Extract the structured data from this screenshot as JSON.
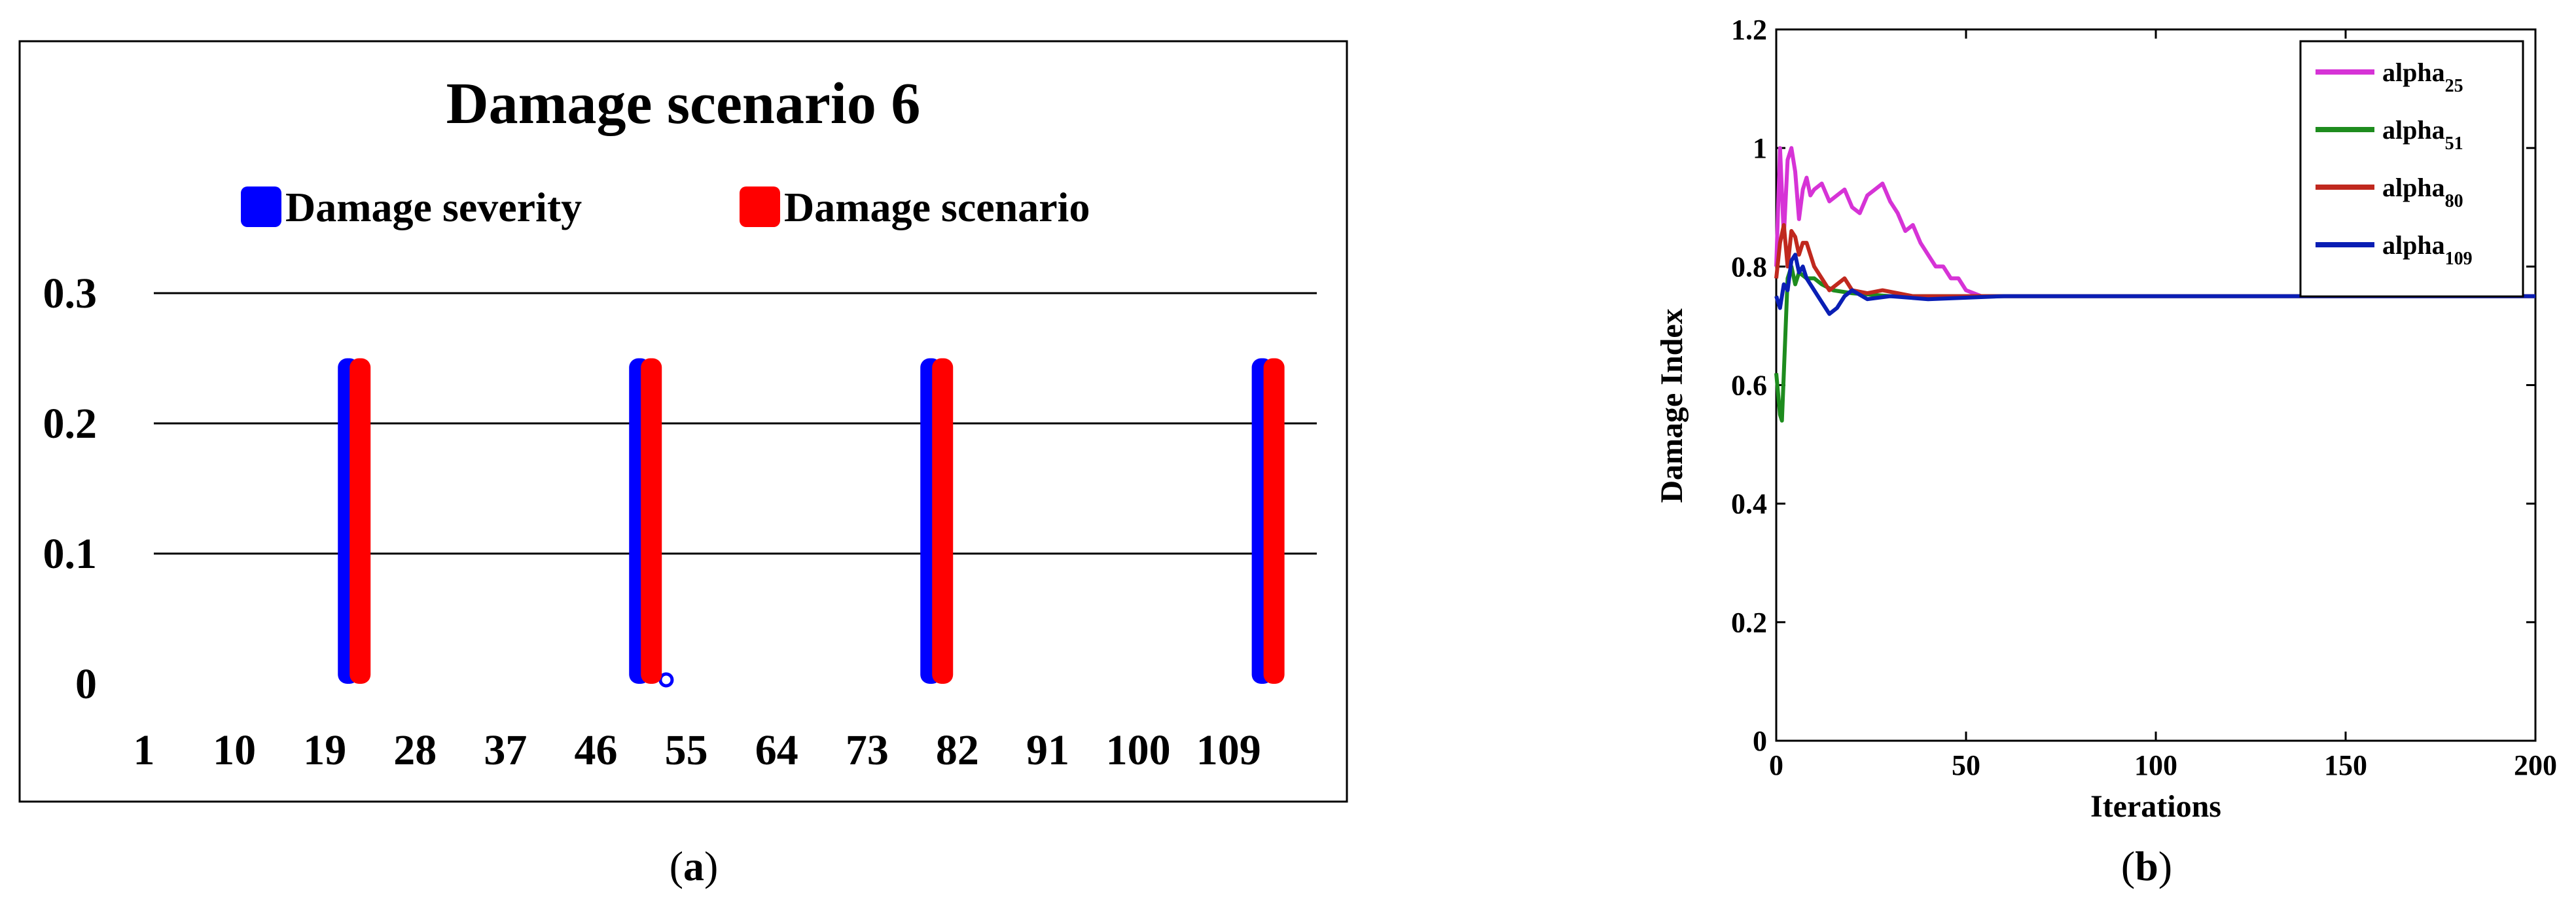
{
  "captions": {
    "a": "a",
    "b": "b"
  },
  "chart_data": [
    {
      "type": "bar",
      "title": "Damage scenario 6",
      "x_tick_labels": [
        "1",
        "10",
        "19",
        "28",
        "37",
        "46",
        "55",
        "64",
        "73",
        "82",
        "91",
        "100",
        "109"
      ],
      "y_tick_labels": [
        "0",
        "0.1",
        "0.2",
        "0.3"
      ],
      "xlim": [
        1,
        117
      ],
      "ylim": [
        0,
        0.3
      ],
      "grid": true,
      "legend_placement": "top",
      "series": [
        {
          "name": "Damage severity",
          "color": "#0000ff",
          "points": [
            {
              "x": 22,
              "y": 0.25
            },
            {
              "x": 51,
              "y": 0.25
            },
            {
              "x": 53,
              "y": 0.005
            },
            {
              "x": 80,
              "y": 0.25
            },
            {
              "x": 113,
              "y": 0.25
            }
          ]
        },
        {
          "name": "Damage scenario",
          "color": "#ff0000",
          "points": [
            {
              "x": 22,
              "y": 0.25
            },
            {
              "x": 51,
              "y": 0.25
            },
            {
              "x": 80,
              "y": 0.25
            },
            {
              "x": 113,
              "y": 0.25
            }
          ]
        }
      ]
    },
    {
      "type": "line",
      "xlabel": "Iterations",
      "ylabel": "Damage Index",
      "x_ticks": [
        0,
        50,
        100,
        150,
        200
      ],
      "y_ticks": [
        0,
        0.2,
        0.4,
        0.6,
        0.8,
        1,
        1.2
      ],
      "xlim": [
        0,
        200
      ],
      "ylim": [
        0,
        1.2
      ],
      "legend_placement": "top-right",
      "series": [
        {
          "name": "alpha",
          "subscript": "25",
          "color": "#d633d6",
          "x": [
            0,
            1,
            2,
            3,
            4,
            5,
            6,
            7,
            8,
            9,
            10,
            12,
            14,
            16,
            18,
            20,
            22,
            24,
            26,
            28,
            30,
            32,
            34,
            36,
            38,
            40,
            42,
            44,
            46,
            48,
            50,
            52,
            54,
            60,
            80,
            120,
            160,
            200
          ],
          "y": [
            0.8,
            1.0,
            0.85,
            0.98,
            1.0,
            0.96,
            0.88,
            0.93,
            0.95,
            0.92,
            0.93,
            0.94,
            0.91,
            0.92,
            0.93,
            0.9,
            0.89,
            0.92,
            0.93,
            0.94,
            0.91,
            0.89,
            0.86,
            0.87,
            0.84,
            0.82,
            0.8,
            0.8,
            0.78,
            0.78,
            0.76,
            0.755,
            0.75,
            0.75,
            0.75,
            0.75,
            0.75,
            0.75
          ]
        },
        {
          "name": "alpha",
          "subscript": "51",
          "color": "#1e8c1e",
          "x": [
            0,
            1,
            1.5,
            2,
            2.5,
            3,
            4,
            5,
            6,
            8,
            10,
            12,
            15,
            20,
            30,
            50,
            100,
            150,
            200
          ],
          "y": [
            0.62,
            0.55,
            0.54,
            0.62,
            0.7,
            0.78,
            0.8,
            0.77,
            0.79,
            0.78,
            0.78,
            0.77,
            0.76,
            0.755,
            0.75,
            0.75,
            0.75,
            0.75,
            0.75
          ]
        },
        {
          "name": "alpha",
          "subscript": "80",
          "color": "#c0281e",
          "x": [
            0,
            1,
            2,
            3,
            4,
            5,
            6,
            7,
            8,
            10,
            12,
            14,
            16,
            18,
            20,
            24,
            28,
            32,
            36,
            40,
            50,
            100,
            150,
            200
          ],
          "y": [
            0.78,
            0.84,
            0.87,
            0.8,
            0.86,
            0.85,
            0.82,
            0.84,
            0.84,
            0.8,
            0.78,
            0.76,
            0.77,
            0.78,
            0.76,
            0.755,
            0.76,
            0.755,
            0.75,
            0.75,
            0.75,
            0.75,
            0.75,
            0.75
          ]
        },
        {
          "name": "alpha",
          "subscript": "109",
          "color": "#0a1eb4",
          "x": [
            0,
            1,
            2,
            3,
            4,
            5,
            6,
            7,
            8,
            10,
            12,
            14,
            16,
            18,
            20,
            24,
            30,
            40,
            60,
            100,
            150,
            200
          ],
          "y": [
            0.75,
            0.73,
            0.77,
            0.76,
            0.81,
            0.82,
            0.79,
            0.8,
            0.78,
            0.76,
            0.74,
            0.72,
            0.73,
            0.75,
            0.76,
            0.745,
            0.75,
            0.745,
            0.75,
            0.75,
            0.75,
            0.75
          ]
        }
      ]
    }
  ]
}
